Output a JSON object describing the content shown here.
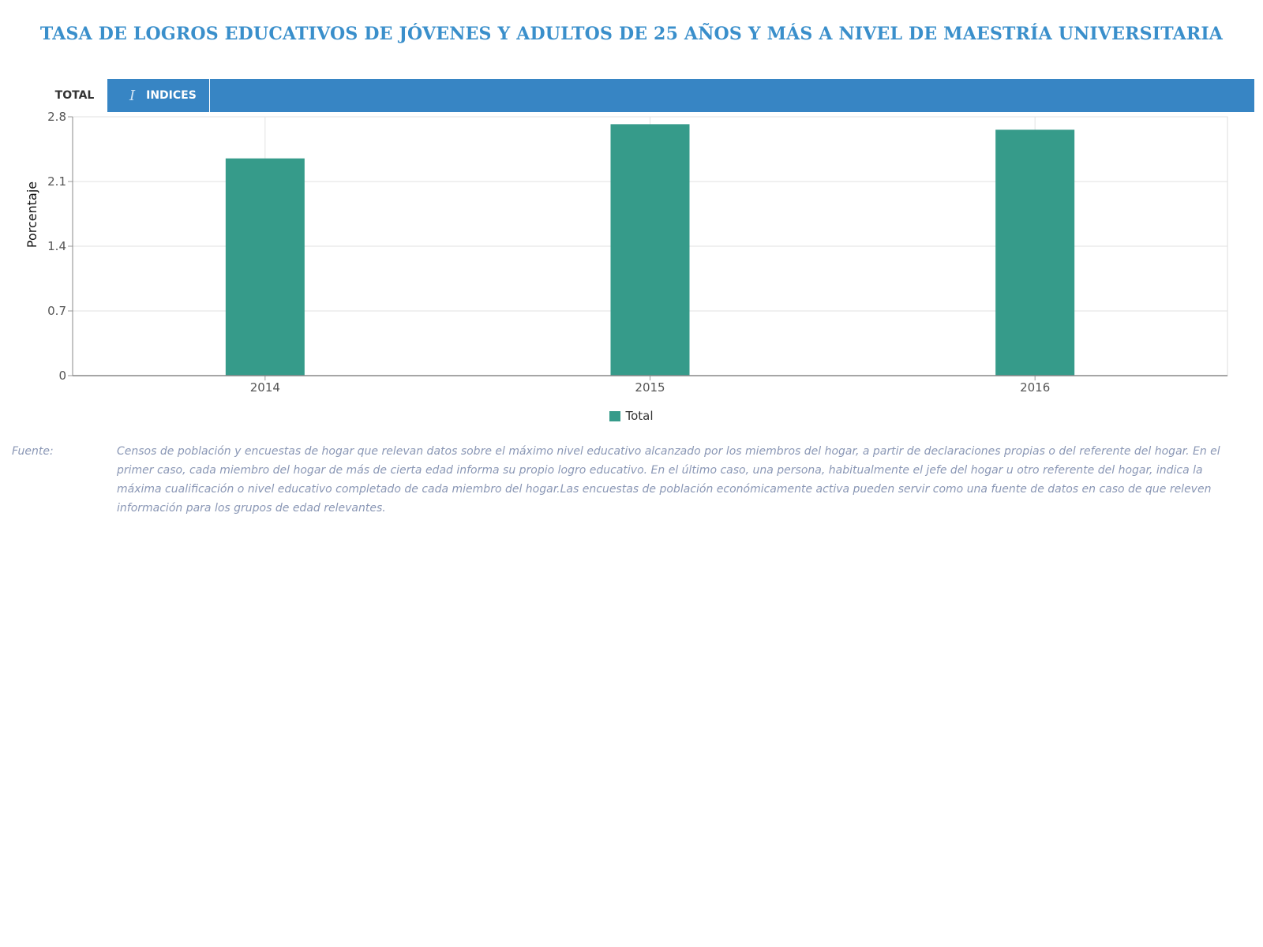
{
  "page": {
    "title": "TASA DE LOGROS EDUCATIVOS DE JÓVENES Y ADULTOS DE 25 AÑOS Y MÁS A NIVEL DE MAESTRÍA UNIVERSITARIA"
  },
  "tabs": [
    {
      "label": "TOTAL",
      "active": true
    },
    {
      "label": "INDICES",
      "active": false,
      "icon": "cursor-text-icon"
    }
  ],
  "colors": {
    "title": "#3a8fcb",
    "tabbar": "#3785c4",
    "bar": "#369b8a",
    "source_text": "#8a97b5"
  },
  "chart_data": {
    "type": "bar",
    "categories": [
      "2014",
      "2015",
      "2016"
    ],
    "series": [
      {
        "name": "Total",
        "values": [
          2.35,
          2.72,
          2.66
        ],
        "color": "#369b8a"
      }
    ],
    "ylabel": "Porcentaje",
    "xlabel": "",
    "ylim": [
      0,
      2.8
    ],
    "yticks": [
      "0",
      "0.7",
      "1.4",
      "2.1",
      "2.8"
    ],
    "grid": true,
    "legend": "bottom-center"
  },
  "source": {
    "label": "Fuente:",
    "text": "Censos de población y encuestas de hogar que relevan datos sobre el máximo nivel educativo alcanzado por los miembros del hogar, a partir de declaraciones propias o del referente del hogar. En el primer caso, cada miembro del hogar de más de cierta edad informa su propio logro educativo. En el último caso, una persona, habitualmente el jefe del hogar u otro referente del hogar, indica la máxima cualificación o nivel educativo completado de cada miembro del hogar.Las encuestas de población económicamente activa pueden servir como una fuente de datos en caso de que releven información para los grupos de edad relevantes."
  }
}
